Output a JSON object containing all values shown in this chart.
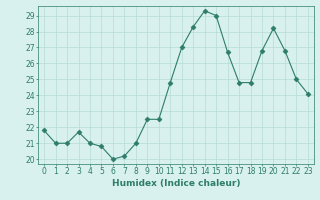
{
  "x": [
    0,
    1,
    2,
    3,
    4,
    5,
    6,
    7,
    8,
    9,
    10,
    11,
    12,
    13,
    14,
    15,
    16,
    17,
    18,
    19,
    20,
    21,
    22,
    23
  ],
  "y": [
    21.8,
    21.0,
    21.0,
    21.7,
    21.0,
    20.8,
    20.0,
    20.2,
    21.0,
    22.5,
    22.5,
    24.8,
    27.0,
    28.3,
    29.3,
    29.0,
    26.7,
    24.8,
    24.8,
    26.8,
    28.2,
    26.8,
    25.0,
    24.1
  ],
  "line_color": "#2e7d6b",
  "marker": "D",
  "marker_size": 2.5,
  "bg_color": "#d8f0ee",
  "grid_color": "#b8dbd8",
  "xlabel": "Humidex (Indice chaleur)",
  "ylim": [
    19.7,
    29.6
  ],
  "xlim": [
    -0.5,
    23.5
  ],
  "yticks": [
    20,
    21,
    22,
    23,
    24,
    25,
    26,
    27,
    28,
    29
  ],
  "xticks": [
    0,
    1,
    2,
    3,
    4,
    5,
    6,
    7,
    8,
    9,
    10,
    11,
    12,
    13,
    14,
    15,
    16,
    17,
    18,
    19,
    20,
    21,
    22,
    23
  ],
  "tick_fontsize": 5.5,
  "label_fontsize": 6.5,
  "label_color": "#2e7d6b"
}
